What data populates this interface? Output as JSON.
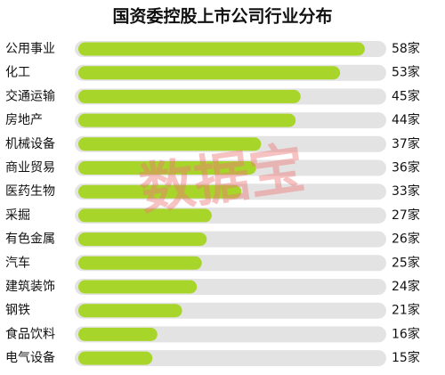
{
  "chart_data": {
    "type": "hbar",
    "title": "国资委控股上市公司行业分布",
    "categories": [
      "公用事业",
      "化工",
      "交通运输",
      "房地产",
      "机械设备",
      "商业贸易",
      "医药生物",
      "采掘",
      "有色金属",
      "汽车",
      "建筑装饰",
      "钢铁",
      "食品饮料",
      "电气设备"
    ],
    "values": [
      58,
      53,
      45,
      44,
      37,
      36,
      33,
      27,
      26,
      25,
      24,
      21,
      16,
      15
    ],
    "value_labels": [
      "58家",
      "53家",
      "45家",
      "44家",
      "37家",
      "36家",
      "33家",
      "27家",
      "26家",
      "25家",
      "24家",
      "21家",
      "16家",
      "15家"
    ],
    "color": "#a8d52a",
    "watermark": "数据宝"
  }
}
